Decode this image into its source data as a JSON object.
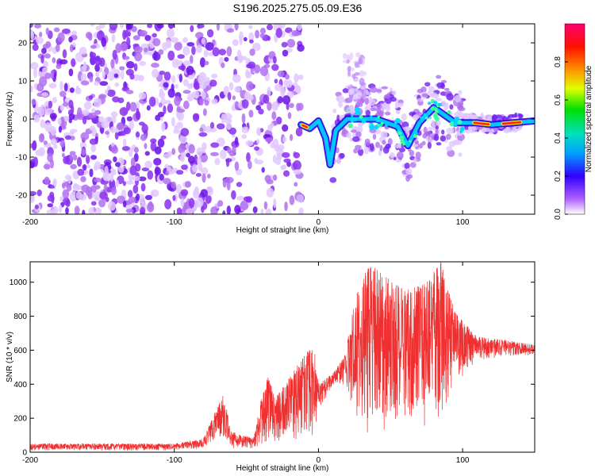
{
  "title": "S196.2025.275.05.09.E36",
  "chart_data": [
    {
      "type": "heatmap",
      "xlabel": "Height of straight line (km)",
      "ylabel": "Frequency (Hz)",
      "xlim": [
        -200,
        150
      ],
      "ylim": [
        -25,
        25
      ],
      "xticks": [
        -200,
        -100,
        0,
        100
      ],
      "yticks": [
        -20,
        -10,
        0,
        10,
        20
      ],
      "colorbar": {
        "label": "Normalized spectral amplitude",
        "range": [
          0,
          1
        ],
        "ticks": [
          "0.0",
          "0.2",
          "0.4",
          "0.6",
          "0.8"
        ],
        "colors": [
          "#ffffff",
          "#9b30ff",
          "#2f00ff",
          "#00c8ff",
          "#00e000",
          "#ffff00",
          "#ff8000",
          "#ff0000",
          "#ff0080"
        ]
      },
      "ridge": {
        "description_points": [
          {
            "x": -12,
            "y": -1.5
          },
          {
            "x": -6,
            "y": -2.5
          },
          {
            "x": 0,
            "y": -0.5
          },
          {
            "x": 5,
            "y": -5
          },
          {
            "x": 8,
            "y": -12
          },
          {
            "x": 12,
            "y": -3
          },
          {
            "x": 20,
            "y": 0
          },
          {
            "x": 40,
            "y": 0
          },
          {
            "x": 55,
            "y": -2
          },
          {
            "x": 62,
            "y": -7
          },
          {
            "x": 70,
            "y": -1
          },
          {
            "x": 80,
            "y": 3
          },
          {
            "x": 95,
            "y": -1
          },
          {
            "x": 110,
            "y": -1
          },
          {
            "x": 120,
            "y": -1.5
          },
          {
            "x": 150,
            "y": -0.5
          }
        ]
      }
    },
    {
      "type": "line",
      "xlabel": "Height of straight line (km)",
      "ylabel": "SNR (10 * v/v)",
      "xlim": [
        -200,
        150
      ],
      "ylim": [
        0,
        1120
      ],
      "xticks": [
        -200,
        -100,
        0,
        100
      ],
      "yticks": [
        0,
        200,
        400,
        600,
        800,
        1000
      ],
      "series": [
        {
          "name": "SNR",
          "color": "#f03030",
          "envelope": [
            {
              "x": -200,
              "lo": 10,
              "hi": 50
            },
            {
              "x": -100,
              "lo": 10,
              "hi": 50
            },
            {
              "x": -80,
              "lo": 20,
              "hi": 80
            },
            {
              "x": -66,
              "lo": 80,
              "hi": 340
            },
            {
              "x": -60,
              "lo": 20,
              "hi": 120
            },
            {
              "x": -45,
              "lo": 20,
              "hi": 80
            },
            {
              "x": -40,
              "lo": 40,
              "hi": 300
            },
            {
              "x": -35,
              "lo": 60,
              "hi": 460
            },
            {
              "x": -30,
              "lo": 40,
              "hi": 320
            },
            {
              "x": -20,
              "lo": 60,
              "hi": 440
            },
            {
              "x": -10,
              "lo": 80,
              "hi": 580
            },
            {
              "x": -3,
              "lo": 100,
              "hi": 620
            },
            {
              "x": 0,
              "lo": 250,
              "hi": 400
            },
            {
              "x": 10,
              "lo": 380,
              "hi": 470
            },
            {
              "x": 18,
              "lo": 400,
              "hi": 560
            },
            {
              "x": 25,
              "lo": 200,
              "hi": 900
            },
            {
              "x": 35,
              "lo": 80,
              "hi": 1110
            },
            {
              "x": 45,
              "lo": 120,
              "hi": 1050
            },
            {
              "x": 60,
              "lo": 200,
              "hi": 950
            },
            {
              "x": 75,
              "lo": 150,
              "hi": 1000
            },
            {
              "x": 85,
              "lo": 200,
              "hi": 1120
            },
            {
              "x": 95,
              "lo": 400,
              "hi": 820
            },
            {
              "x": 110,
              "lo": 540,
              "hi": 680
            },
            {
              "x": 130,
              "lo": 560,
              "hi": 660
            },
            {
              "x": 150,
              "lo": 570,
              "hi": 630
            }
          ]
        }
      ]
    }
  ]
}
